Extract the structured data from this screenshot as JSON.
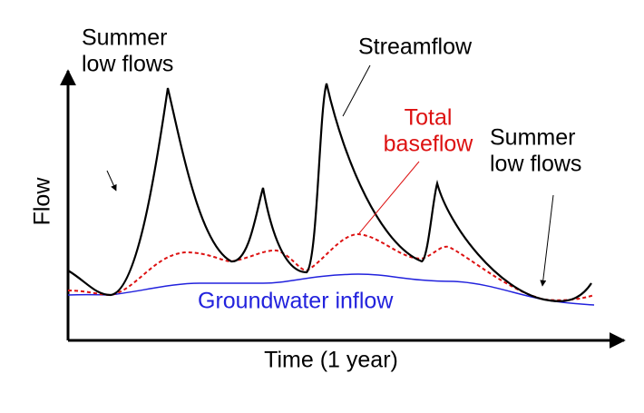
{
  "axes": {
    "y_label": "Flow",
    "x_label": "Time (1 year)"
  },
  "labels": {
    "summer_left": [
      "Summer",
      "low flows"
    ],
    "streamflow": "Streamflow",
    "total_baseflow": [
      "Total",
      "baseflow"
    ],
    "summer_right": [
      "Summer",
      "low flows"
    ],
    "groundwater": "Groundwater inflow"
  }
}
